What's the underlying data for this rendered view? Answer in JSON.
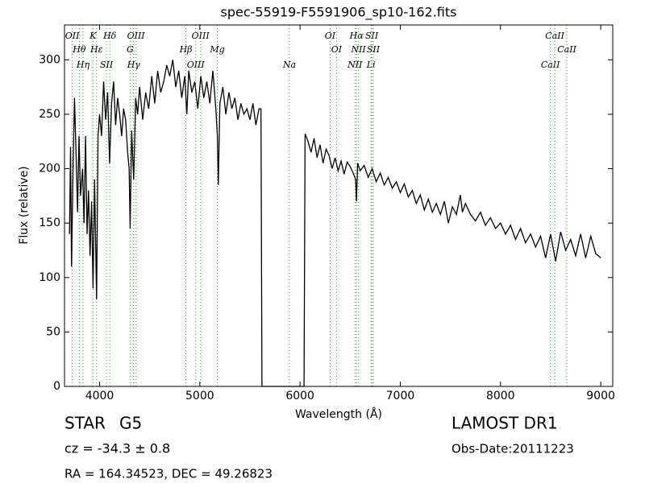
{
  "chart_data": {
    "type": "line",
    "title": "spec-55919-F5591906_sp10-162.fits",
    "x_label": "Wavelength (Å)",
    "y_label": "Flux (relative)",
    "color": "#000000",
    "line_color": "#2ca02c",
    "xlim": [
      3650,
      9120
    ],
    "ylim": [
      0,
      332
    ],
    "xticks": [
      4000,
      5000,
      6000,
      7000,
      8000,
      9000
    ],
    "yticks": [
      0,
      50,
      100,
      150,
      200,
      250,
      300
    ],
    "grid": false,
    "x": [
      3700,
      3710,
      3720,
      3735,
      3750,
      3765,
      3780,
      3795,
      3810,
      3830,
      3845,
      3860,
      3875,
      3890,
      3905,
      3920,
      3935,
      3950,
      3970,
      3985,
      4000,
      4020,
      4040,
      4060,
      4080,
      4100,
      4120,
      4140,
      4160,
      4180,
      4200,
      4220,
      4240,
      4260,
      4280,
      4295,
      4305,
      4320,
      4340,
      4360,
      4380,
      4400,
      4430,
      4460,
      4490,
      4520,
      4550,
      4580,
      4610,
      4640,
      4670,
      4700,
      4730,
      4760,
      4790,
      4820,
      4850,
      4870,
      4890,
      4920,
      4950,
      4980,
      5010,
      5040,
      5070,
      5100,
      5130,
      5160,
      5175,
      5185,
      5200,
      5230,
      5260,
      5290,
      5320,
      5350,
      5380,
      5410,
      5440,
      5470,
      5500,
      5530,
      5560,
      5590,
      5610,
      5620,
      6040,
      6050,
      6080,
      6110,
      6140,
      6170,
      6200,
      6230,
      6260,
      6290,
      6320,
      6350,
      6380,
      6410,
      6440,
      6470,
      6500,
      6530,
      6555,
      6563,
      6575,
      6600,
      6640,
      6680,
      6720,
      6760,
      6800,
      6840,
      6880,
      6920,
      6960,
      7000,
      7040,
      7080,
      7120,
      7160,
      7200,
      7240,
      7280,
      7320,
      7360,
      7400,
      7440,
      7480,
      7520,
      7560,
      7600,
      7620,
      7650,
      7700,
      7750,
      7800,
      7850,
      7900,
      7950,
      8000,
      8050,
      8100,
      8150,
      8200,
      8250,
      8300,
      8350,
      8400,
      8450,
      8500,
      8550,
      8600,
      8650,
      8700,
      8750,
      8800,
      8850,
      8900,
      8950,
      9000
    ],
    "values": [
      140,
      220,
      110,
      200,
      265,
      215,
      160,
      230,
      175,
      200,
      150,
      230,
      140,
      180,
      120,
      170,
      90,
      190,
      80,
      230,
      250,
      230,
      280,
      245,
      270,
      205,
      260,
      280,
      240,
      265,
      250,
      230,
      255,
      245,
      215,
      200,
      145,
      235,
      190,
      265,
      250,
      275,
      245,
      270,
      255,
      285,
      260,
      290,
      270,
      280,
      295,
      285,
      300,
      275,
      290,
      265,
      285,
      250,
      290,
      270,
      280,
      255,
      285,
      265,
      280,
      260,
      290,
      255,
      230,
      185,
      260,
      275,
      250,
      270,
      255,
      265,
      245,
      260,
      250,
      255,
      245,
      260,
      240,
      255,
      255,
      0,
      0,
      232,
      225,
      215,
      228,
      210,
      222,
      205,
      218,
      212,
      200,
      210,
      198,
      207,
      195,
      206,
      202,
      196,
      190,
      170,
      205,
      198,
      203,
      192,
      200,
      188,
      196,
      185,
      192,
      182,
      188,
      178,
      186,
      174,
      180,
      168,
      176,
      162,
      172,
      160,
      168,
      158,
      170,
      150,
      165,
      158,
      176,
      160,
      168,
      158,
      152,
      160,
      148,
      155,
      145,
      150,
      140,
      148,
      135,
      145,
      132,
      140,
      128,
      138,
      118,
      140,
      115,
      142,
      125,
      135,
      120,
      140,
      118,
      138,
      122,
      118
    ],
    "spectral_lines": [
      {
        "label": "OII",
        "x": 3727
      },
      {
        "label": "Hθ",
        "x": 3798
      },
      {
        "label": "Hη",
        "x": 3835
      },
      {
        "label": "K",
        "x": 3934
      },
      {
        "label": "Hε",
        "x": 3970
      },
      {
        "label": "SII",
        "x": 4069
      },
      {
        "label": "Hδ",
        "x": 4102
      },
      {
        "label": "G",
        "x": 4305
      },
      {
        "label": "Hγ",
        "x": 4340
      },
      {
        "label": "OIII",
        "x": 4363
      },
      {
        "label": "Hβ",
        "x": 4861
      },
      {
        "label": "OIII",
        "x": 4959
      },
      {
        "label": "OIII",
        "x": 5007
      },
      {
        "label": "Mg",
        "x": 5175
      },
      {
        "label": "Na",
        "x": 5894
      },
      {
        "label": "OI",
        "x": 6300
      },
      {
        "label": "OI",
        "x": 6364
      },
      {
        "label": "NII",
        "x": 6548
      },
      {
        "label": "Hα",
        "x": 6563
      },
      {
        "label": "NII",
        "x": 6583
      },
      {
        "label": "Li",
        "x": 6708
      },
      {
        "label": "SII",
        "x": 6716
      },
      {
        "label": "SII",
        "x": 6731
      },
      {
        "label": "CaII",
        "x": 8498
      },
      {
        "label": "CaII",
        "x": 8542
      },
      {
        "label": "CaII",
        "x": 8662
      }
    ],
    "object_class": "STAR",
    "subclass": "G5",
    "redshift": "cz = -34.3 ± 0.8",
    "coordinates": "RA = 164.34523, DEC = 49.26823",
    "survey": "LAMOST DR1",
    "obs_date": "Obs-Date:20111223"
  }
}
